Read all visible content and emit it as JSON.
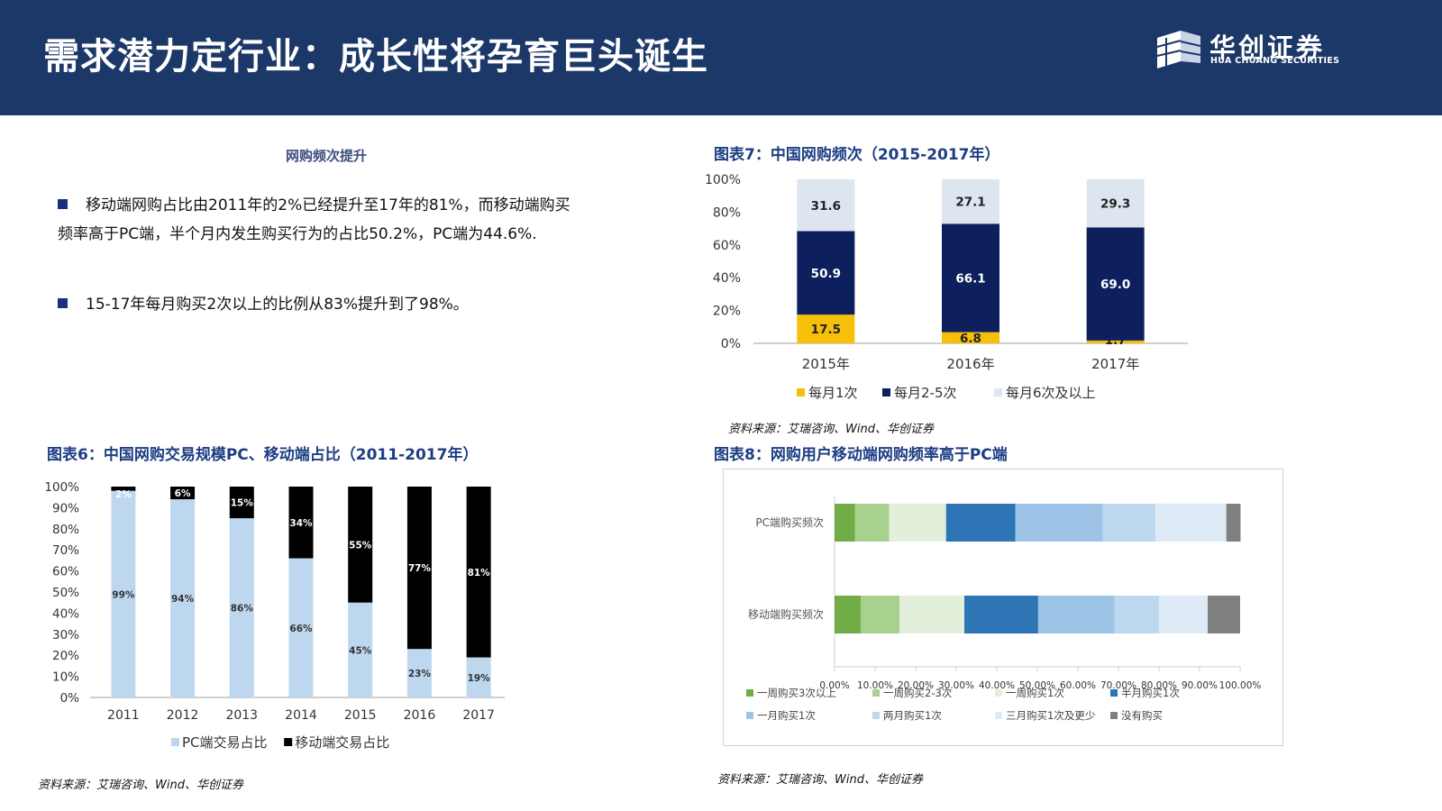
{
  "header": {
    "title": "需求潜力定行业：成长性将孕育巨头诞生",
    "logo_name": "华创证券",
    "logo_en": "HUA CHUANG SECURITIES"
  },
  "text_section": {
    "heading": "网购频次提升",
    "bullets": [
      "移动端网购占比由2011年的2%已经提升至17年的81%，而移动端购买频率高于PC端，半个月内发生购买行为的占比50.2%，PC端为44.6%.",
      "15-17年每月购买2次以上的比例从83%提升到了98%。"
    ]
  },
  "fig6": {
    "title": "图表6：中国网购交易规模PC、移动端占比（2011-2017年）",
    "source": "资料来源：艾瑞咨询、Wind、华创证券"
  },
  "fig7": {
    "title": "图表7：中国网购频次（2015-2017年）",
    "source": "资料来源：艾瑞咨询、Wind、华创证券"
  },
  "fig8": {
    "title": "图表8：网购用户移动端网购频率高于PC端",
    "source": "资料来源：艾瑞咨询、Wind、华创证券"
  },
  "colors": {
    "header_bg": "#1c3868",
    "pc_share": "#bdd7ee",
    "mobile_share": "#000000",
    "monthly_1": "#f5bf0a",
    "monthly_2_5": "#0d1f5c",
    "monthly_6_plus": "#dde5f1"
  },
  "chart_data": [
    {
      "type": "bar",
      "stacked": true,
      "categories": [
        "2011",
        "2012",
        "2013",
        "2014",
        "2015",
        "2016",
        "2017"
      ],
      "series": [
        {
          "name": "PC端交易占比",
          "values": [
            99,
            94,
            86,
            66,
            45,
            23,
            19
          ],
          "labels": [
            "99%",
            "94%",
            "86%",
            "66%",
            "45%",
            "23%",
            "19%"
          ],
          "color": "#bdd7ee"
        },
        {
          "name": "移动端交易占比",
          "values": [
            2,
            6,
            15,
            34,
            55,
            77,
            81
          ],
          "labels": [
            "2%",
            "6%",
            "15%",
            "34%",
            "55%",
            "77%",
            "81%"
          ],
          "color": "#000000"
        }
      ],
      "y_ticks": [
        "0%",
        "10%",
        "20%",
        "30%",
        "40%",
        "50%",
        "60%",
        "70%",
        "80%",
        "90%",
        "100%"
      ],
      "ylim": [
        0,
        100
      ],
      "legend_position": "bottom",
      "grid": false
    },
    {
      "type": "bar",
      "stacked": true,
      "categories": [
        "2015年",
        "2016年",
        "2017年"
      ],
      "series": [
        {
          "name": "每月1次",
          "values": [
            17.5,
            6.8,
            1.7
          ],
          "labels": [
            "17.5",
            "6.8",
            "1.7"
          ],
          "color": "#f5bf0a"
        },
        {
          "name": "每月2-5次",
          "values": [
            50.9,
            66.1,
            69.0
          ],
          "labels": [
            "50.9",
            "66.1",
            "69.0"
          ],
          "color": "#0d1f5c"
        },
        {
          "name": "每月6次及以上",
          "values": [
            31.6,
            27.1,
            29.3
          ],
          "labels": [
            "31.6",
            "27.1",
            "29.3"
          ],
          "color": "#dde5f1"
        }
      ],
      "y_ticks": [
        "0%",
        "20%",
        "40%",
        "60%",
        "80%",
        "100%"
      ],
      "ylim": [
        0,
        100
      ],
      "legend_position": "bottom",
      "grid": false
    },
    {
      "type": "bar",
      "orientation": "horizontal",
      "stacked": true,
      "categories": [
        "PC端购买频次",
        "移动端购买频次"
      ],
      "series": [
        {
          "name": "一周购买3次以上",
          "values": [
            5.0,
            6.5
          ],
          "color": "#70ad47"
        },
        {
          "name": "一周购买2-3次",
          "values": [
            8.5,
            9.5
          ],
          "color": "#a9d18e"
        },
        {
          "name": "一周购买1次",
          "values": [
            14.0,
            16.0
          ],
          "color": "#e2efda"
        },
        {
          "name": "半月购买1次",
          "values": [
            17.1,
            18.2
          ],
          "color": "#2e75b6"
        },
        {
          "name": "一月购买1次",
          "values": [
            21.5,
            18.8
          ],
          "color": "#9dc3e6"
        },
        {
          "name": "两月购买1次",
          "values": [
            13.0,
            11.0
          ],
          "color": "#bdd7ee"
        },
        {
          "name": "三月购买1次及更少",
          "values": [
            17.5,
            12.0
          ],
          "color": "#deebf7"
        },
        {
          "name": "没有购买",
          "values": [
            3.5,
            8.0
          ],
          "color": "#7f7f7f"
        }
      ],
      "x_ticks": [
        "0.00%",
        "10.00%",
        "20.00%",
        "30.00%",
        "40.00%",
        "50.00%",
        "60.00%",
        "70.00%",
        "80.00%",
        "90.00%",
        "100.00%"
      ],
      "xlim": [
        0,
        100
      ],
      "legend_position": "bottom",
      "grid": false
    }
  ]
}
